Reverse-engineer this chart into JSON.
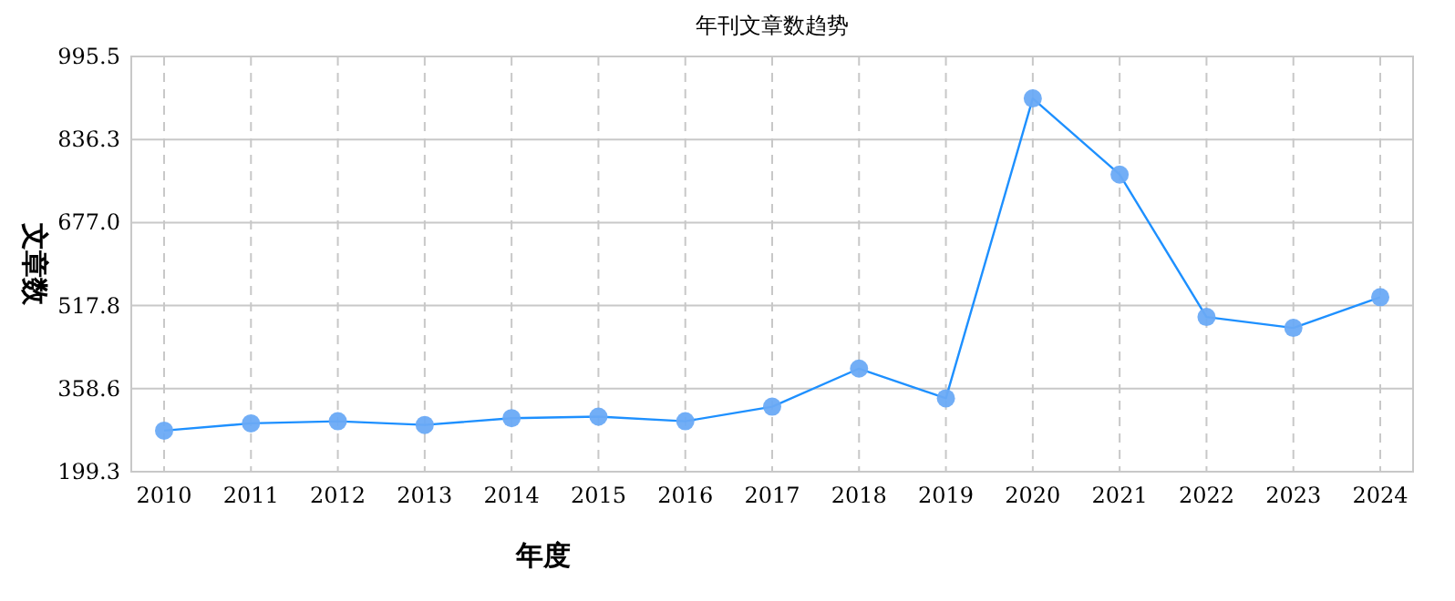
{
  "chart_data": {
    "type": "line",
    "title": "年刊文章数趋势",
    "xlabel": "年度",
    "ylabel": "文章数",
    "categories": [
      "2010",
      "2011",
      "2012",
      "2013",
      "2014",
      "2015",
      "2016",
      "2017",
      "2018",
      "2019",
      "2020",
      "2021",
      "2022",
      "2023",
      "2024"
    ],
    "series": [
      {
        "color": "#1e90ff",
        "values": [
          278,
          292,
          296,
          289,
          302,
          305,
          296,
          324,
          397,
          340,
          915,
          769,
          496,
          475,
          534
        ]
      }
    ],
    "ylim": [
      199.3,
      995.5
    ],
    "yticks": [
      {
        "value": 199.3,
        "label": "199.3"
      },
      {
        "value": 358.6,
        "label": "358.6"
      },
      {
        "value": 517.8,
        "label": "517.8"
      },
      {
        "value": 677.0,
        "label": "677.0"
      },
      {
        "value": 836.3,
        "label": "836.3"
      },
      {
        "value": 995.5,
        "label": "995.5"
      }
    ],
    "grid": true,
    "marker": "circle"
  }
}
